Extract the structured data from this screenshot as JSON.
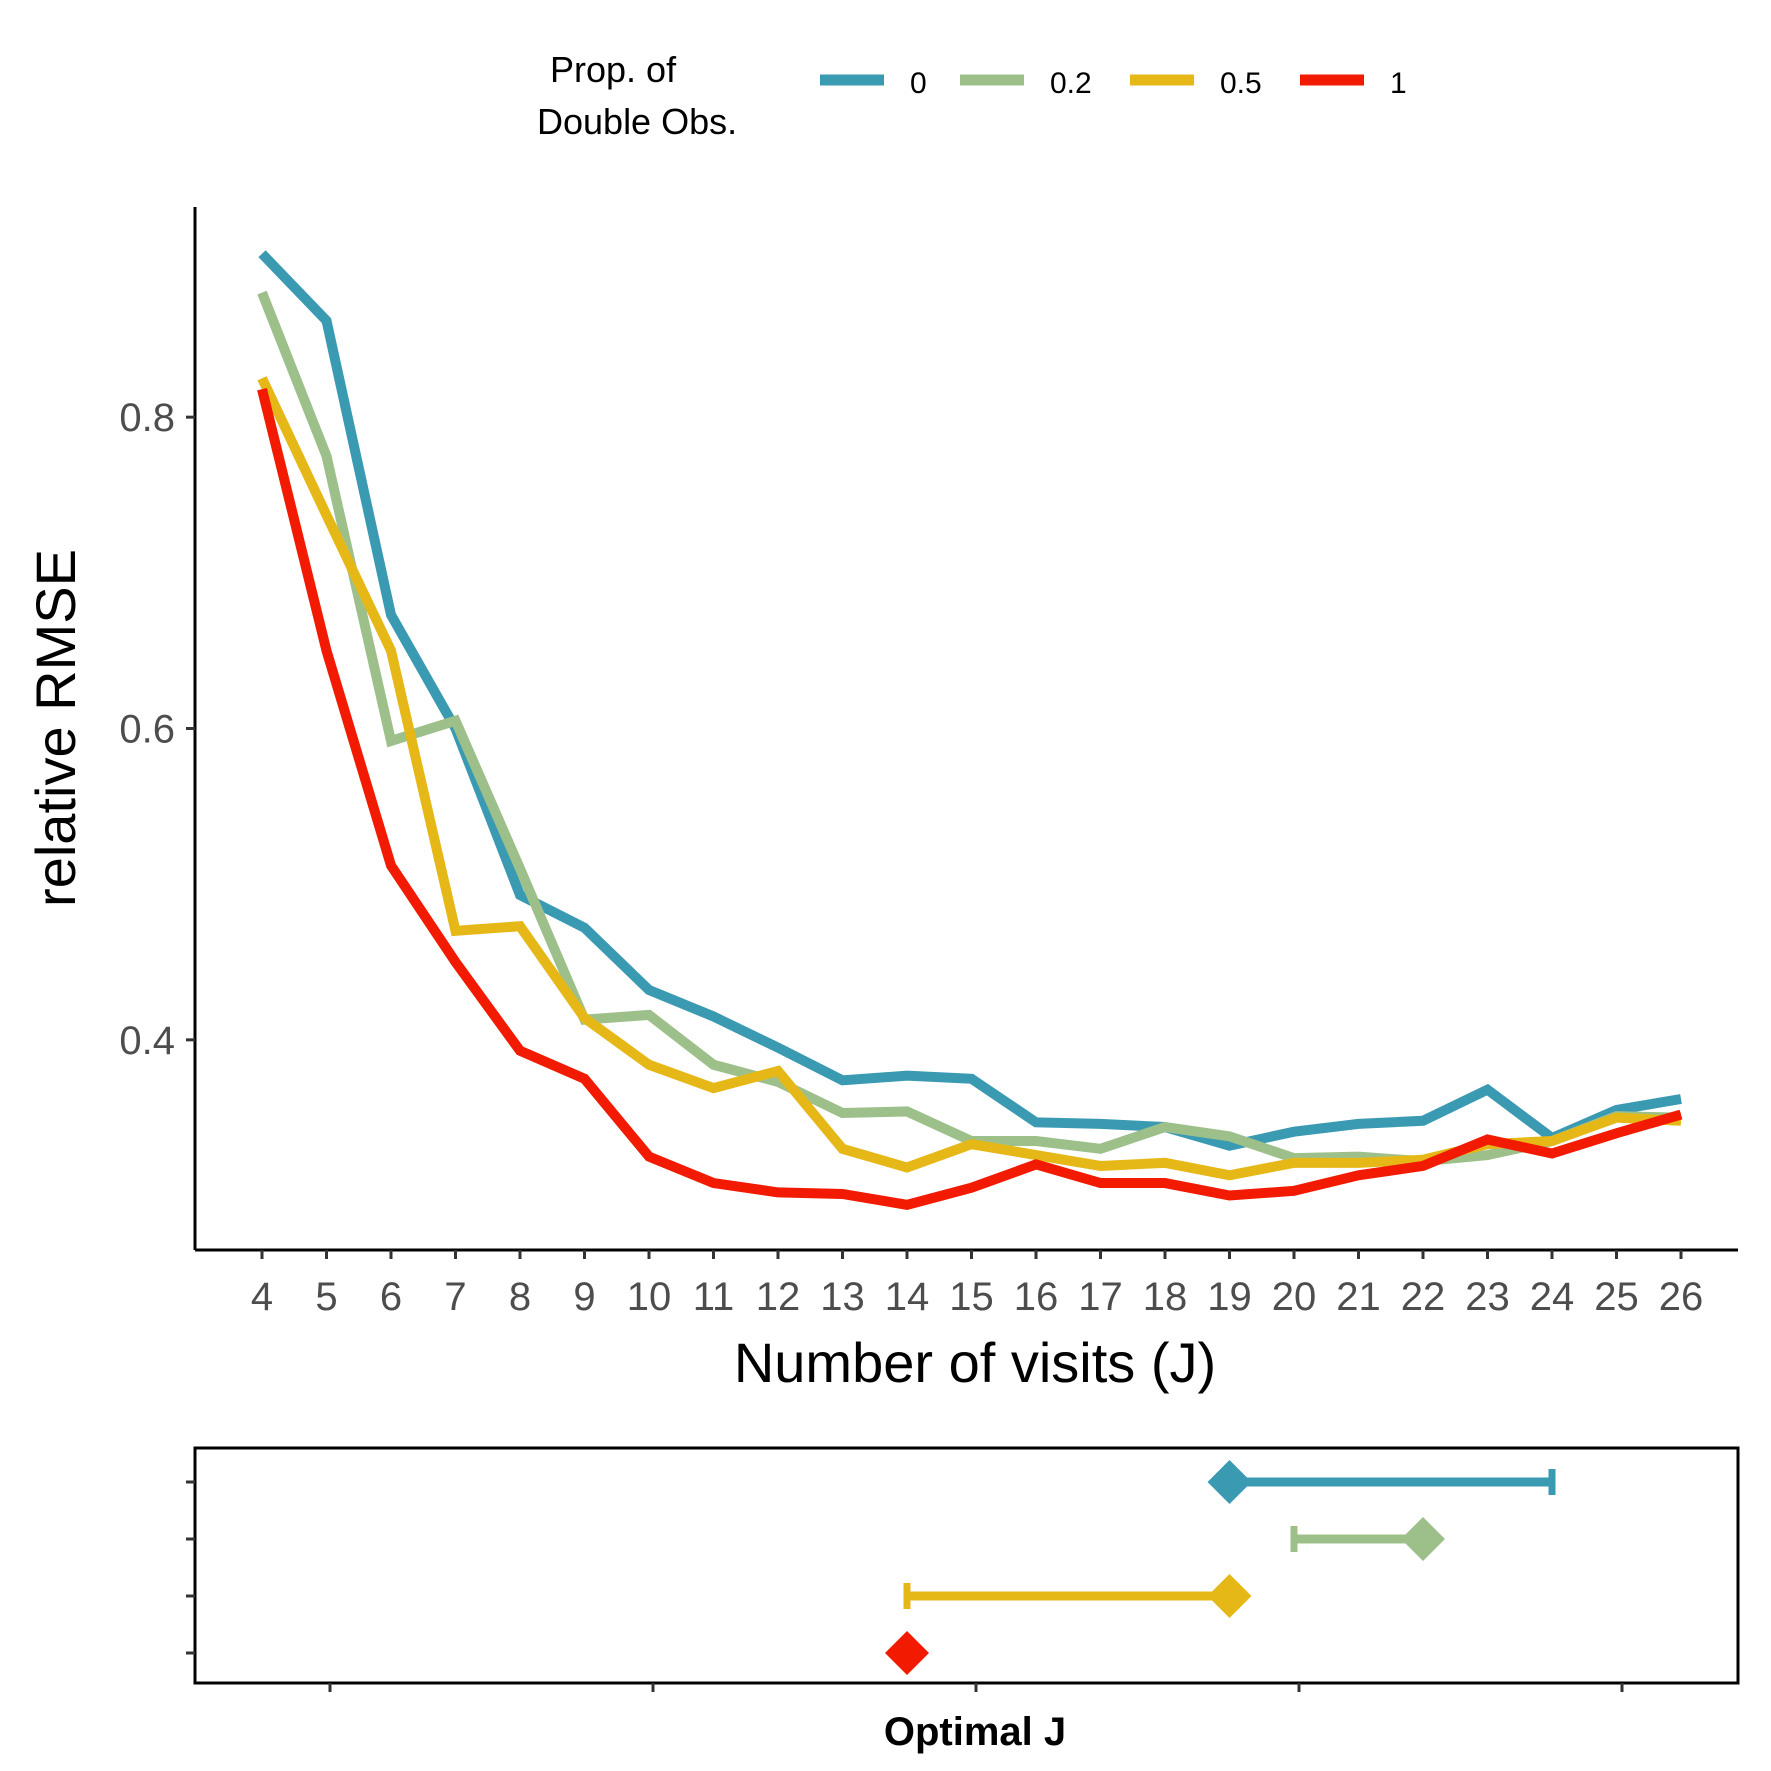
{
  "legend": {
    "title_line1": "Prop. of",
    "title_line2": "Double Obs."
  },
  "chart_data": [
    {
      "type": "line",
      "xlabel": "Number of visits (J)",
      "ylabel": "relative RMSE",
      "x": [
        4,
        5,
        6,
        7,
        8,
        9,
        10,
        11,
        12,
        13,
        14,
        15,
        16,
        17,
        18,
        19,
        20,
        21,
        22,
        23,
        24,
        25,
        26
      ],
      "x_tick_labels": [
        "4",
        "5",
        "6",
        "7",
        "8",
        "9",
        "10",
        "11",
        "12",
        "13",
        "14",
        "15",
        "16",
        "17",
        "18",
        "19",
        "20",
        "21",
        "22",
        "23",
        "24",
        "25",
        "26"
      ],
      "ylim": [
        0.265,
        0.935
      ],
      "y_ticks": [
        0.4,
        0.6,
        0.8
      ],
      "y_tick_labels": [
        "0.4",
        "0.6",
        "0.8"
      ],
      "grid": false,
      "legend_position": "top",
      "series": [
        {
          "name": "0",
          "color": "#3A9AB2",
          "values": [
            0.905,
            0.862,
            0.673,
            0.6,
            0.493,
            0.472,
            0.432,
            0.415,
            0.395,
            0.374,
            0.377,
            0.375,
            0.347,
            0.346,
            0.344,
            0.332,
            0.341,
            0.346,
            0.348,
            0.368,
            0.337,
            0.355,
            0.362
          ]
        },
        {
          "name": "0.2",
          "color": "#9DC08B",
          "values": [
            0.88,
            0.775,
            0.592,
            0.605,
            0.51,
            0.413,
            0.416,
            0.384,
            0.373,
            0.353,
            0.354,
            0.335,
            0.335,
            0.33,
            0.344,
            0.338,
            0.324,
            0.325,
            0.322,
            0.326,
            0.335,
            0.351,
            0.35
          ]
        },
        {
          "name": "0.5",
          "color": "#E6B817",
          "values": [
            0.825,
            0.737,
            0.65,
            0.47,
            0.473,
            0.414,
            0.384,
            0.369,
            0.38,
            0.33,
            0.318,
            0.333,
            0.326,
            0.319,
            0.321,
            0.313,
            0.321,
            0.321,
            0.323,
            0.333,
            0.335,
            0.35,
            0.348
          ]
        },
        {
          "name": "1",
          "color": "#F21A00",
          "values": [
            0.818,
            0.65,
            0.512,
            0.45,
            0.393,
            0.375,
            0.325,
            0.308,
            0.302,
            0.301,
            0.294,
            0.305,
            0.32,
            0.308,
            0.308,
            0.3,
            0.303,
            0.313,
            0.319,
            0.336,
            0.327,
            0.34,
            0.352
          ]
        }
      ]
    },
    {
      "type": "range",
      "xlabel": "Optimal J",
      "x_tick_count": 5,
      "series": [
        {
          "name": "0",
          "color": "#3A9AB2",
          "optimal": 19,
          "range": [
            19,
            24
          ]
        },
        {
          "name": "0.2",
          "color": "#9DC08B",
          "optimal": 22,
          "range": [
            20,
            22
          ]
        },
        {
          "name": "0.5",
          "color": "#E6B817",
          "optimal": 19,
          "range": [
            14,
            19
          ]
        },
        {
          "name": "1",
          "color": "#F21A00",
          "optimal": 14,
          "range": [
            14,
            14
          ]
        }
      ]
    }
  ]
}
